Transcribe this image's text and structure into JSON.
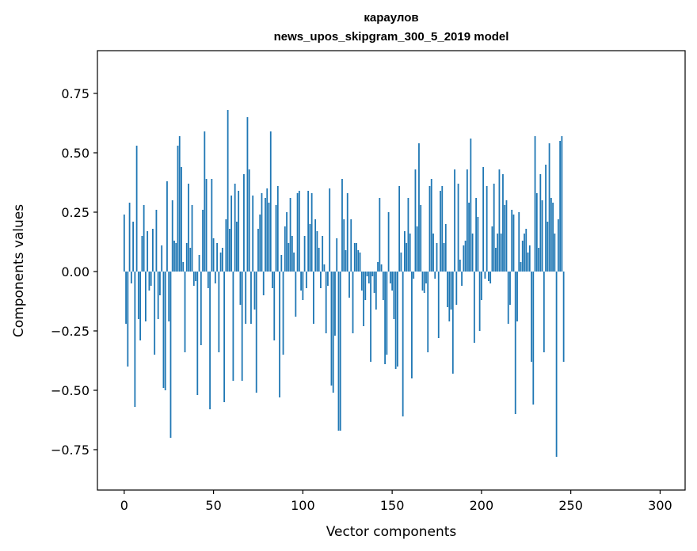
{
  "chart_data": {
    "type": "bar",
    "title": "караулов",
    "subtitle": "news_upos_skipgram_300_5_2019 model",
    "xlabel": "Vector components",
    "ylabel": "Components values",
    "xlim": [
      -15,
      314
    ],
    "ylim": [
      -0.92,
      0.93
    ],
    "x_ticks": [
      0,
      50,
      100,
      150,
      200,
      250,
      300
    ],
    "x_tick_labels": [
      "0",
      "50",
      "100",
      "150",
      "200",
      "250",
      "300"
    ],
    "y_ticks": [
      -0.75,
      -0.5,
      -0.25,
      0.0,
      0.25,
      0.5,
      0.75
    ],
    "y_tick_labels": [
      "−0.75",
      "−0.50",
      "−0.25",
      "0.00",
      "0.25",
      "0.50",
      "0.75"
    ],
    "grid": false,
    "bar_color": "#1f77b4",
    "values": [
      0.24,
      -0.22,
      -0.4,
      0.29,
      -0.05,
      0.21,
      -0.57,
      0.53,
      -0.2,
      -0.29,
      0.15,
      0.28,
      -0.21,
      0.17,
      -0.08,
      -0.06,
      0.18,
      -0.35,
      0.26,
      -0.2,
      -0.1,
      0.11,
      -0.49,
      -0.5,
      0.38,
      -0.21,
      -0.7,
      0.3,
      0.13,
      0.12,
      0.53,
      0.57,
      0.44,
      0.04,
      -0.34,
      0.12,
      0.37,
      0.1,
      0.28,
      -0.06,
      -0.04,
      -0.52,
      0.07,
      -0.31,
      0.26,
      0.59,
      0.39,
      -0.07,
      -0.58,
      0.39,
      0.14,
      -0.05,
      0.12,
      -0.34,
      0.08,
      0.1,
      -0.55,
      0.22,
      0.68,
      0.18,
      0.32,
      -0.46,
      0.37,
      0.21,
      0.34,
      -0.14,
      -0.46,
      0.41,
      -0.22,
      0.65,
      0.43,
      -0.22,
      0.32,
      -0.16,
      -0.51,
      0.18,
      0.24,
      0.33,
      -0.1,
      0.31,
      0.35,
      0.29,
      0.59,
      -0.07,
      -0.29,
      0.28,
      0.36,
      -0.53,
      0.07,
      -0.35,
      0.19,
      0.25,
      0.12,
      0.31,
      0.15,
      0.08,
      -0.19,
      0.33,
      0.34,
      -0.08,
      -0.12,
      0.15,
      -0.07,
      0.34,
      0.2,
      0.33,
      -0.22,
      0.22,
      0.17,
      0.1,
      -0.07,
      0.15,
      0.03,
      -0.26,
      -0.06,
      0.35,
      -0.48,
      -0.51,
      -0.27,
      0.14,
      -0.67,
      -0.67,
      0.39,
      0.22,
      0.09,
      0.33,
      -0.11,
      0.22,
      -0.26,
      0.12,
      0.12,
      0.09,
      0.08,
      -0.08,
      -0.23,
      -0.12,
      -0.02,
      -0.05,
      -0.38,
      -0.02,
      -0.09,
      -0.16,
      0.04,
      0.31,
      0.03,
      -0.12,
      -0.39,
      -0.35,
      0.25,
      -0.05,
      -0.08,
      -0.2,
      -0.41,
      -0.4,
      0.36,
      0.08,
      -0.61,
      0.17,
      0.12,
      0.31,
      0.16,
      -0.45,
      -0.03,
      0.43,
      0.19,
      0.54,
      0.28,
      -0.08,
      -0.09,
      -0.05,
      -0.34,
      0.36,
      0.39,
      0.16,
      -0.03,
      0.12,
      -0.28,
      0.34,
      0.36,
      0.12,
      0.2,
      -0.15,
      -0.21,
      -0.16,
      -0.43,
      0.43,
      -0.14,
      0.37,
      0.05,
      -0.06,
      0.11,
      0.13,
      0.43,
      0.29,
      0.56,
      0.16,
      -0.3,
      0.31,
      0.23,
      -0.25,
      -0.12,
      0.44,
      -0.03,
      0.36,
      -0.04,
      -0.05,
      0.19,
      0.37,
      0.1,
      0.16,
      0.43,
      0.16,
      0.41,
      0.28,
      0.3,
      -0.22,
      -0.14,
      0.26,
      0.24,
      -0.6,
      -0.21,
      0.25,
      0.04,
      0.13,
      0.16,
      0.18,
      0.08,
      0.11,
      -0.38,
      -0.56,
      0.57,
      0.33,
      0.1,
      0.41,
      0.3,
      -0.34,
      0.45,
      0.21,
      0.54,
      0.31,
      0.29,
      0.16,
      -0.78,
      0.22,
      0.55,
      0.57,
      -0.38
    ]
  }
}
